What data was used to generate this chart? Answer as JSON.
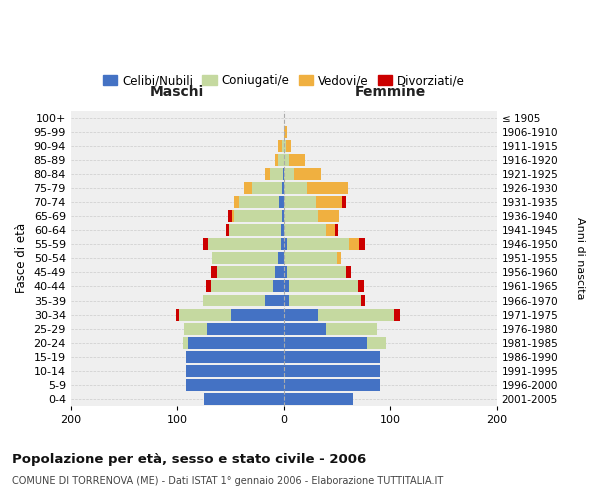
{
  "age_groups": [
    "0-4",
    "5-9",
    "10-14",
    "15-19",
    "20-24",
    "25-29",
    "30-34",
    "35-39",
    "40-44",
    "45-49",
    "50-54",
    "55-59",
    "60-64",
    "65-69",
    "70-74",
    "75-79",
    "80-84",
    "85-89",
    "90-94",
    "95-99",
    "100+"
  ],
  "birth_years": [
    "2001-2005",
    "1996-2000",
    "1991-1995",
    "1986-1990",
    "1981-1985",
    "1976-1980",
    "1971-1975",
    "1966-1970",
    "1961-1965",
    "1956-1960",
    "1951-1955",
    "1946-1950",
    "1941-1945",
    "1936-1940",
    "1931-1935",
    "1926-1930",
    "1921-1925",
    "1916-1920",
    "1911-1915",
    "1906-1910",
    "≤ 1905"
  ],
  "males": {
    "celibi": [
      75,
      92,
      92,
      92,
      90,
      72,
      50,
      18,
      10,
      8,
      5,
      3,
      3,
      2,
      4,
      2,
      1,
      0,
      0,
      0,
      0
    ],
    "coniugati": [
      0,
      0,
      0,
      0,
      5,
      22,
      48,
      58,
      58,
      55,
      62,
      68,
      48,
      45,
      38,
      28,
      12,
      5,
      2,
      0,
      0
    ],
    "vedovi": [
      0,
      0,
      0,
      0,
      0,
      0,
      0,
      0,
      0,
      0,
      0,
      0,
      0,
      2,
      5,
      7,
      5,
      3,
      3,
      0,
      0
    ],
    "divorziati": [
      0,
      0,
      0,
      0,
      0,
      0,
      3,
      0,
      5,
      5,
      0,
      5,
      3,
      3,
      0,
      0,
      0,
      0,
      0,
      0,
      0
    ]
  },
  "females": {
    "nubili": [
      65,
      90,
      90,
      90,
      78,
      40,
      32,
      5,
      5,
      3,
      0,
      3,
      0,
      0,
      0,
      0,
      0,
      0,
      0,
      0,
      0
    ],
    "coniugate": [
      0,
      0,
      0,
      0,
      18,
      48,
      72,
      68,
      65,
      55,
      50,
      58,
      40,
      32,
      30,
      22,
      10,
      5,
      2,
      0,
      0
    ],
    "vedove": [
      0,
      0,
      0,
      0,
      0,
      0,
      0,
      0,
      0,
      0,
      4,
      10,
      8,
      20,
      25,
      38,
      25,
      15,
      5,
      3,
      0
    ],
    "divorziate": [
      0,
      0,
      0,
      0,
      0,
      0,
      5,
      3,
      5,
      5,
      0,
      5,
      3,
      0,
      3,
      0,
      0,
      0,
      0,
      0,
      0
    ]
  },
  "colors": {
    "celibi": "#4472c4",
    "coniugati": "#c5d9a0",
    "vedovi": "#f0b040",
    "divorziati": "#cc0000"
  },
  "xlim": [
    -200,
    200
  ],
  "xticks": [
    -200,
    -100,
    0,
    100,
    200
  ],
  "xticklabels": [
    "200",
    "100",
    "0",
    "100",
    "200"
  ],
  "title": "Popolazione per età, sesso e stato civile - 2006",
  "subtitle": "COMUNE DI TORRENOVA (ME) - Dati ISTAT 1° gennaio 2006 - Elaborazione TUTTITALIA.IT",
  "ylabel_left": "Fasce di età",
  "ylabel_right": "Anni di nascita",
  "maschi_label": "Maschi",
  "femmine_label": "Femmine",
  "legend_labels": [
    "Celibi/Nubili",
    "Coniugati/e",
    "Vedovi/e",
    "Divorziati/e"
  ],
  "bg_color": "#ffffff",
  "ax_bg_color": "#efefef",
  "grid_color": "#cccccc",
  "bar_height": 0.85
}
